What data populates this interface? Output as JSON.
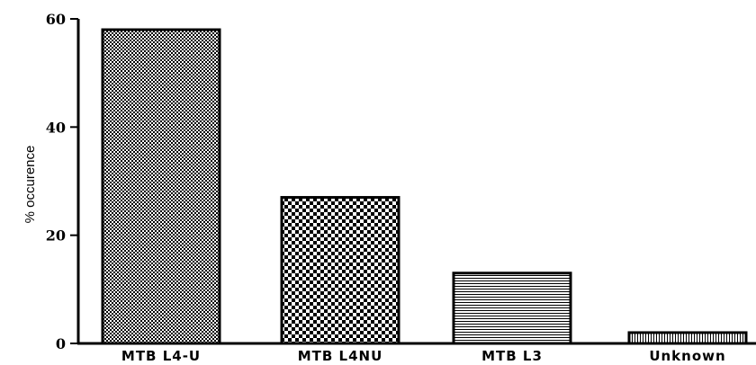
{
  "chart_data": {
    "type": "bar",
    "title": "",
    "xlabel": "",
    "ylabel": "% occurence",
    "categories": [
      "MTB L4-U",
      "MTB L4NU",
      "MTB L3",
      "Unknown"
    ],
    "values": [
      58,
      27,
      13,
      2
    ],
    "ylim": [
      0,
      60
    ],
    "yticks": [
      "0",
      "20",
      "40",
      "60"
    ],
    "grid": false,
    "legend": "none",
    "bar_patterns": [
      "fine-checker",
      "coarse-checker",
      "horizontal-lines",
      "vertical-lines"
    ]
  }
}
